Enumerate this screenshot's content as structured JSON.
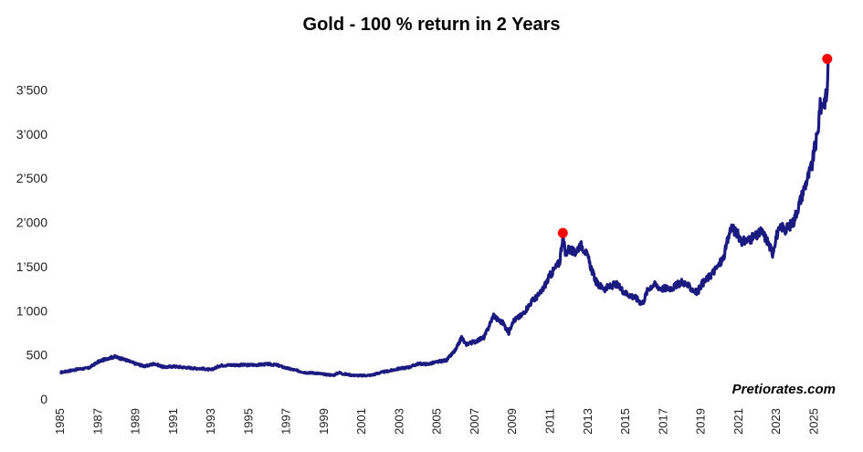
{
  "chart_data": {
    "type": "line",
    "title": "Gold - 100 % return in 2 Years",
    "xlabel": "",
    "ylabel": "",
    "xlim": [
      1985,
      2026
    ],
    "ylim": [
      0,
      4000
    ],
    "y_ticks": [
      {
        "value": 0,
        "label": "0"
      },
      {
        "value": 500,
        "label": "500"
      },
      {
        "value": 1000,
        "label": "1’000"
      },
      {
        "value": 1500,
        "label": "1’500"
      },
      {
        "value": 2000,
        "label": "2’000"
      },
      {
        "value": 2500,
        "label": "2’500"
      },
      {
        "value": 3000,
        "label": "3’000"
      },
      {
        "value": 3500,
        "label": "3’500"
      }
    ],
    "x_ticks": [
      "1985",
      "1987",
      "1989",
      "1991",
      "1993",
      "1995",
      "1997",
      "1999",
      "2001",
      "2003",
      "2005",
      "2007",
      "2009",
      "2011",
      "2013",
      "2015",
      "2017",
      "2019",
      "2021",
      "2023",
      "2025"
    ],
    "grid": false,
    "line_color": "#1a1a80",
    "highlight_color": "#ff0000",
    "series": [
      {
        "x": [
          1985.0,
          1985.5,
          1986.0,
          1986.5,
          1987.0,
          1987.5,
          1987.9,
          1988.5,
          1989.0,
          1989.5,
          1990.0,
          1990.5,
          1991.0,
          1991.5,
          1992.0,
          1992.5,
          1993.0,
          1993.5,
          1994.0,
          1994.5,
          1995.0,
          1995.5,
          1996.0,
          1996.5,
          1997.0,
          1997.5,
          1998.0,
          1998.5,
          1999.0,
          1999.5,
          1999.8,
          2000.0,
          2000.5,
          2001.0,
          2001.5,
          2002.0,
          2002.5,
          2003.0,
          2003.5,
          2004.0,
          2004.5,
          2005.0,
          2005.5,
          2006.0,
          2006.3,
          2006.5,
          2007.0,
          2007.5,
          2008.0,
          2008.2,
          2008.5,
          2008.8,
          2009.0,
          2009.5,
          2010.0,
          2010.5,
          2011.0,
          2011.5,
          2011.67,
          2011.8,
          2012.0,
          2012.3,
          2012.6,
          2012.8,
          2013.0,
          2013.3,
          2013.5,
          2013.9,
          2014.5,
          2015.0,
          2015.5,
          2015.9,
          2016.2,
          2016.5,
          2016.9,
          2017.5,
          2018.0,
          2018.5,
          2018.8,
          2019.0,
          2019.5,
          2019.9,
          2020.2,
          2020.6,
          2020.8,
          2021.0,
          2021.2,
          2021.5,
          2022.0,
          2022.2,
          2022.5,
          2022.8,
          2023.0,
          2023.3,
          2023.5,
          2023.9,
          2024.2,
          2024.5,
          2024.9,
          2025.0,
          2025.2,
          2025.3,
          2025.5,
          2025.7,
          2025.75
        ],
        "y": [
          300,
          320,
          340,
          350,
          420,
          460,
          480,
          440,
          400,
          370,
          400,
          360,
          370,
          360,
          350,
          345,
          330,
          380,
          385,
          385,
          385,
          388,
          395,
          385,
          350,
          325,
          300,
          295,
          280,
          270,
          300,
          285,
          270,
          265,
          270,
          300,
          320,
          345,
          360,
          400,
          395,
          420,
          440,
          560,
          700,
          620,
          650,
          700,
          950,
          900,
          860,
          750,
          880,
          950,
          1100,
          1200,
          1400,
          1550,
          1850,
          1650,
          1700,
          1650,
          1750,
          1700,
          1600,
          1400,
          1300,
          1250,
          1300,
          1200,
          1150,
          1080,
          1250,
          1300,
          1250,
          1260,
          1330,
          1250,
          1200,
          1290,
          1400,
          1500,
          1600,
          1950,
          1900,
          1850,
          1780,
          1800,
          1850,
          1900,
          1800,
          1650,
          1850,
          1950,
          1920,
          2000,
          2200,
          2400,
          2650,
          2800,
          3000,
          3300,
          3350,
          3450,
          3850
        ]
      }
    ],
    "highlights": [
      {
        "x": 2011.67,
        "y": 1880
      },
      {
        "x": 2025.7,
        "y": 3850
      }
    ]
  },
  "watermark": "Pretiorates.com"
}
